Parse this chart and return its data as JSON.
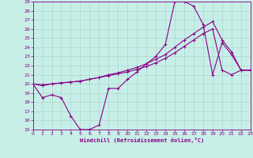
{
  "xlabel": "Windchill (Refroidissement éolien,°C)",
  "bg_color": "#c8eee8",
  "grid_color": "#aad8cc",
  "line_color": "#880088",
  "xlim": [
    0,
    23
  ],
  "ylim": [
    15,
    29
  ],
  "xticks": [
    0,
    1,
    2,
    3,
    4,
    5,
    6,
    7,
    8,
    9,
    10,
    11,
    12,
    13,
    14,
    15,
    16,
    17,
    18,
    19,
    20,
    21,
    22,
    23
  ],
  "yticks": [
    15,
    16,
    17,
    18,
    19,
    20,
    21,
    22,
    23,
    24,
    25,
    26,
    27,
    28,
    29
  ],
  "curve1_x": [
    0,
    1,
    2,
    3,
    4,
    5,
    6,
    7,
    8,
    9,
    10,
    11,
    12,
    13,
    14,
    15,
    16,
    17,
    18,
    19,
    20,
    21,
    22,
    23
  ],
  "curve1_y": [
    20,
    18.5,
    18.8,
    18.5,
    16.5,
    15,
    15,
    15.5,
    19.5,
    19.5,
    20.5,
    21.3,
    22.2,
    23,
    24.3,
    29,
    29,
    28.5,
    26.5,
    21.0,
    24.5,
    23.2,
    21.5,
    21.5
  ],
  "curve2_x": [
    0,
    1,
    2,
    3,
    4,
    5,
    6,
    7,
    8,
    9,
    10,
    11,
    12,
    13,
    14,
    15,
    16,
    17,
    18,
    19,
    20,
    21,
    22,
    23
  ],
  "curve2_y": [
    20,
    19.8,
    20.0,
    20.1,
    20.2,
    20.3,
    20.5,
    20.7,
    21.0,
    21.2,
    21.5,
    21.8,
    22.2,
    22.7,
    23.2,
    24.0,
    24.8,
    25.5,
    26.2,
    26.8,
    24.8,
    23.5,
    21.5,
    21.5
  ],
  "curve3_x": [
    0,
    1,
    2,
    3,
    4,
    5,
    6,
    7,
    8,
    9,
    10,
    11,
    12,
    13,
    14,
    15,
    16,
    17,
    18,
    19,
    20,
    21,
    22,
    23
  ],
  "curve3_y": [
    20,
    19.9,
    20.0,
    20.1,
    20.2,
    20.3,
    20.5,
    20.7,
    20.9,
    21.1,
    21.3,
    21.6,
    21.9,
    22.3,
    22.8,
    23.4,
    24.1,
    24.8,
    25.5,
    26.0,
    21.5,
    21.0,
    21.5,
    21.5
  ]
}
